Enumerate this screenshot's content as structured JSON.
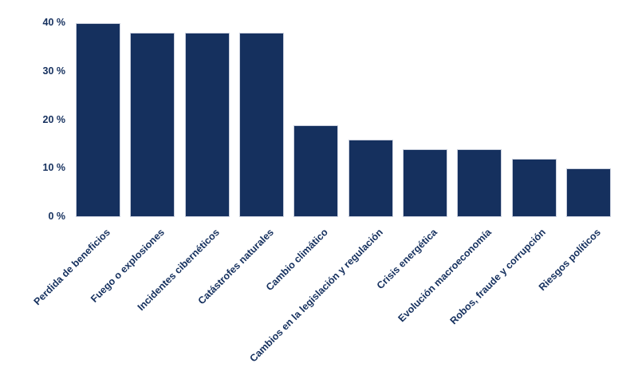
{
  "chart_data": {
    "type": "bar",
    "categories": [
      "Perdida de beneficios",
      "Fuego o explosiones",
      "Incidentes cibernéticos",
      "Catástrofes naturales",
      "Cambio climático",
      "Cambios en la legislación y regulación",
      "Crisis energética",
      "Evolución macroeconomía",
      "Robos, fraude y corrupción",
      "Riesgos políticos"
    ],
    "values": [
      40,
      38,
      38,
      38,
      19,
      16,
      14,
      14,
      12,
      10
    ],
    "title": "",
    "xlabel": "",
    "ylabel": "",
    "ylim": [
      0,
      40
    ],
    "yticks": [
      0,
      10,
      20,
      30,
      40
    ],
    "ytick_suffix": " %",
    "grid": false,
    "legend": false,
    "bar_color": "#15305e",
    "bar_border_color": "#c9cfdd",
    "text_color": "#15305e"
  }
}
